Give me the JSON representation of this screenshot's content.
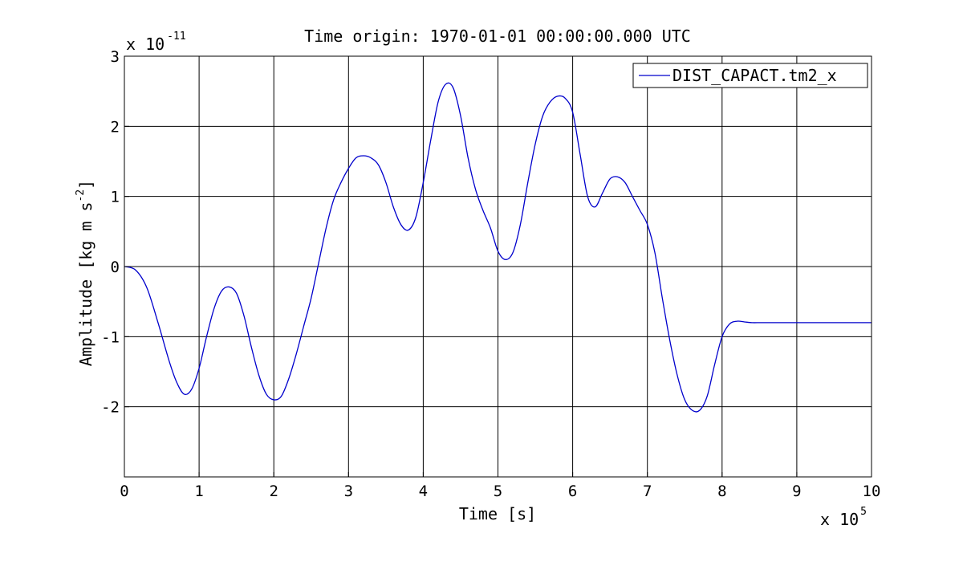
{
  "chart_data": {
    "type": "line",
    "title": "Time origin: 1970-01-01 00:00:00.000 UTC",
    "xlabel": "Time  [s]",
    "ylabel": {
      "text": "Amplitude  [kg m s",
      "superscript": "-2",
      "close": "]"
    },
    "x_multiplier": {
      "base": "x 10",
      "exponent": "5"
    },
    "y_multiplier": {
      "base": "x 10",
      "exponent": "-11"
    },
    "xlim": [
      0,
      10
    ],
    "ylim": [
      -3,
      3
    ],
    "xticks": [
      0,
      1,
      2,
      3,
      4,
      5,
      6,
      7,
      8,
      9,
      10
    ],
    "xtick_labels": [
      "0",
      "1",
      "2",
      "3",
      "4",
      "5",
      "6",
      "7",
      "8",
      "9",
      "10"
    ],
    "yticks": [
      -2,
      -1,
      0,
      1,
      2,
      3
    ],
    "ytick_labels": [
      "-2",
      "-1",
      "0",
      "1",
      "2",
      "3"
    ],
    "grid": true,
    "legend_position": "top-right",
    "series": [
      {
        "name": "DIST_CAPACT.tm2_x",
        "color": "#0000cc",
        "x": [
          0,
          0.15,
          0.3,
          0.45,
          0.6,
          0.7,
          0.8,
          0.9,
          1.0,
          1.1,
          1.2,
          1.3,
          1.4,
          1.5,
          1.6,
          1.7,
          1.8,
          1.9,
          2.0,
          2.1,
          2.2,
          2.3,
          2.4,
          2.5,
          2.6,
          2.7,
          2.8,
          2.9,
          3.0,
          3.1,
          3.2,
          3.3,
          3.4,
          3.5,
          3.6,
          3.7,
          3.8,
          3.9,
          4.0,
          4.1,
          4.2,
          4.3,
          4.4,
          4.5,
          4.6,
          4.7,
          4.8,
          4.9,
          5.0,
          5.1,
          5.2,
          5.3,
          5.4,
          5.5,
          5.6,
          5.7,
          5.8,
          5.9,
          6.0,
          6.1,
          6.2,
          6.3,
          6.4,
          6.5,
          6.6,
          6.7,
          6.8,
          6.9,
          7.0,
          7.1,
          7.2,
          7.3,
          7.4,
          7.5,
          7.6,
          7.7,
          7.8,
          7.9,
          8.0,
          8.1,
          8.2,
          8.3,
          8.4,
          8.5,
          8.6,
          8.7,
          8.8,
          8.9,
          9.0,
          9.1,
          9.2,
          9.3,
          9.4,
          9.5,
          9.6,
          9.7,
          9.8,
          9.9,
          10.0
        ],
        "y": [
          0,
          -0.05,
          -0.3,
          -0.8,
          -1.35,
          -1.65,
          -1.82,
          -1.75,
          -1.45,
          -1.0,
          -0.6,
          -0.35,
          -0.29,
          -0.38,
          -0.7,
          -1.15,
          -1.55,
          -1.82,
          -1.9,
          -1.85,
          -1.6,
          -1.25,
          -0.85,
          -0.45,
          0.05,
          0.55,
          0.95,
          1.2,
          1.4,
          1.55,
          1.58,
          1.55,
          1.45,
          1.2,
          0.85,
          0.6,
          0.52,
          0.7,
          1.2,
          1.8,
          2.35,
          2.6,
          2.55,
          2.15,
          1.55,
          1.1,
          0.8,
          0.55,
          0.22,
          0.1,
          0.2,
          0.6,
          1.2,
          1.75,
          2.15,
          2.35,
          2.43,
          2.4,
          2.2,
          1.6,
          1.0,
          0.85,
          1.05,
          1.25,
          1.28,
          1.2,
          1.0,
          0.8,
          0.6,
          0.2,
          -0.45,
          -1.05,
          -1.55,
          -1.9,
          -2.05,
          -2.05,
          -1.85,
          -1.4,
          -1.0,
          -0.82,
          -0.78,
          -0.79,
          -0.8,
          -0.8,
          -0.8,
          -0.8,
          -0.8,
          -0.8,
          -0.8,
          -0.8,
          -0.8,
          -0.8,
          -0.8,
          -0.8,
          -0.8,
          -0.8,
          -0.8,
          -0.8,
          -0.8
        ]
      }
    ]
  }
}
